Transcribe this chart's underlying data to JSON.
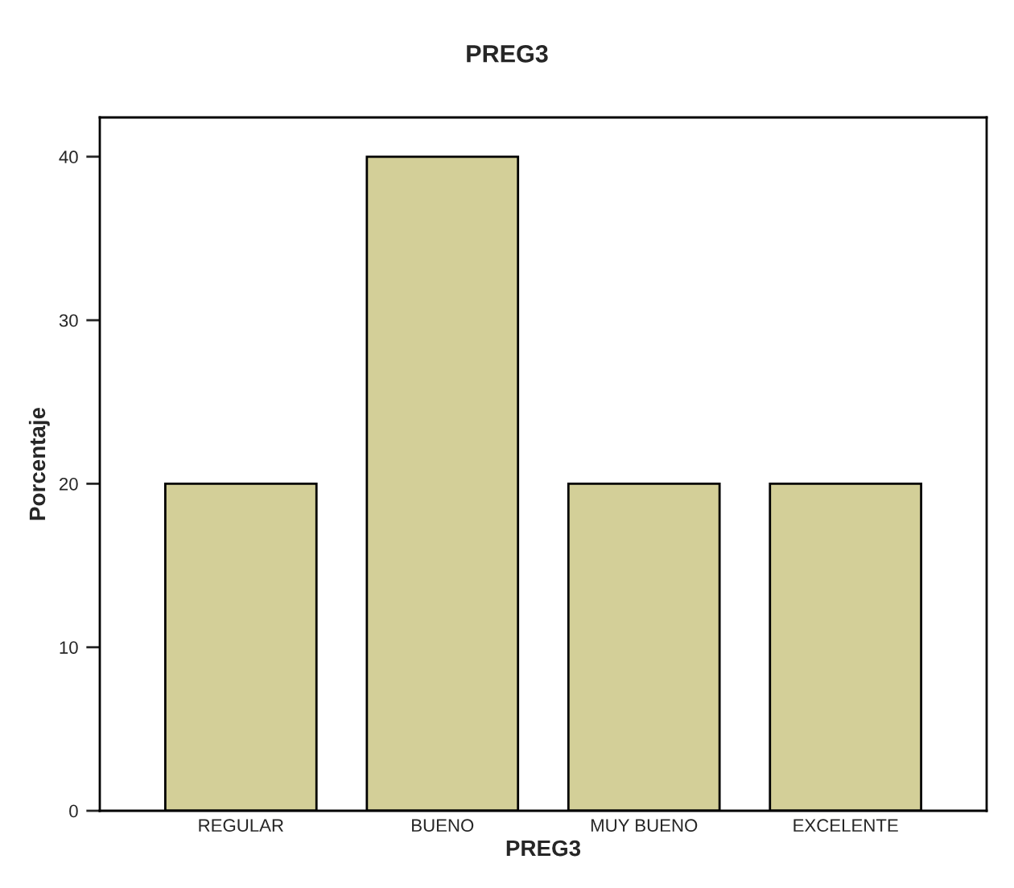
{
  "chart_data": {
    "type": "bar",
    "title": "PREG3",
    "xlabel": "PREG3",
    "ylabel": "Porcentaje",
    "categories": [
      "REGULAR",
      "BUENO",
      "MUY BUENO",
      "EXCELENTE"
    ],
    "values": [
      20,
      40,
      20,
      20
    ],
    "color": "#d3cf98",
    "ylim": [
      0,
      42.4
    ],
    "yticks": [
      0,
      10,
      20,
      30,
      40
    ],
    "grid": false,
    "legend": false
  }
}
